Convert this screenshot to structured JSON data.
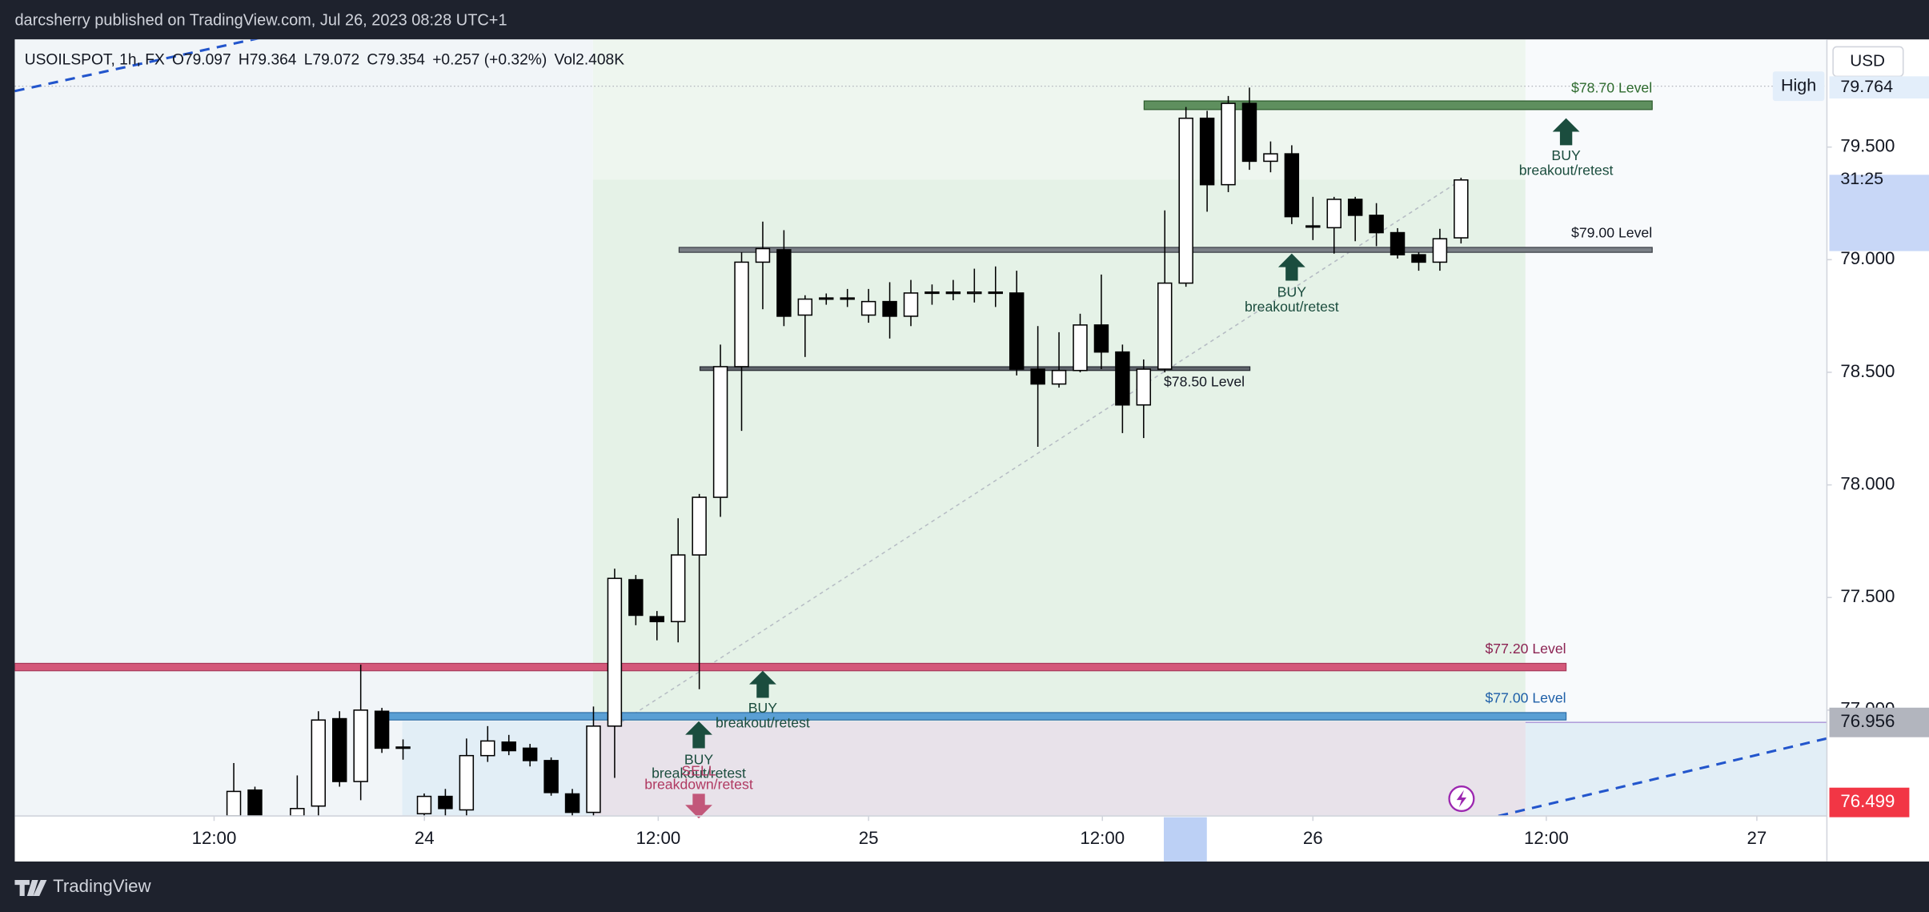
{
  "header": {
    "publisher": "darcsherry published on TradingView.com, Jul 26, 2023 08:28 UTC+1"
  },
  "chart_data": {
    "type": "candlestick",
    "title": "USOILSPOT, 1h, FX",
    "legend": {
      "open": "O79.097",
      "high": "H79.364",
      "low": "L79.072",
      "close": "C79.354",
      "change": "+0.257 (+0.32%)",
      "volume": "Vol2.408K"
    },
    "currency": "USD",
    "x": [
      0,
      1,
      3,
      4,
      5,
      6,
      7,
      8,
      9,
      10,
      11,
      12,
      13,
      14,
      15,
      16,
      17,
      18,
      19,
      20,
      21,
      22,
      23,
      24,
      25,
      26,
      27,
      28,
      29,
      30,
      31,
      32,
      33,
      34,
      35,
      36,
      37,
      38,
      39,
      40,
      41,
      42,
      43,
      44,
      45,
      46,
      47,
      48,
      49,
      50,
      51,
      52,
      53,
      54,
      55,
      56,
      57,
      58
    ],
    "open": [
      76.53,
      76.645,
      76.53,
      76.574,
      76.962,
      76.683,
      76.995,
      76.831,
      76.54,
      76.617,
      76.557,
      76.798,
      76.858,
      76.831,
      76.776,
      76.628,
      76.546,
      76.929,
      77.579,
      77.415,
      77.393,
      77.689,
      77.945,
      78.525,
      78.989,
      79.044,
      78.754,
      78.825,
      78.83,
      78.754,
      78.814,
      78.749,
      78.852,
      78.856,
      78.85,
      78.856,
      78.852,
      78.514,
      78.448,
      78.508,
      78.71,
      78.59,
      78.355,
      78.514,
      78.896,
      79.628,
      79.333,
      79.694,
      79.437,
      79.47,
      79.148,
      79.142,
      79.268,
      79.197,
      79.12,
      79.022,
      78.989,
      79.097
    ],
    "high": [
      76.765,
      76.66,
      76.71,
      76.995,
      76.995,
      77.202,
      77.01,
      76.87,
      76.63,
      76.65,
      76.874,
      76.929,
      76.89,
      76.85,
      76.79,
      76.65,
      77.016,
      77.628,
      77.6,
      77.44,
      77.852,
      77.96,
      78.623,
      79.033,
      79.169,
      79.131,
      78.842,
      78.85,
      78.87,
      78.87,
      78.9,
      78.91,
      78.89,
      78.91,
      78.96,
      78.97,
      78.951,
      78.705,
      78.678,
      78.76,
      78.934,
      78.623,
      78.557,
      79.219,
      79.678,
      79.661,
      79.727,
      79.764,
      79.525,
      79.508,
      79.279,
      79.279,
      79.279,
      79.251,
      79.14,
      79.033,
      79.137,
      79.364
    ],
    "low": [
      76.5,
      76.5,
      76.5,
      76.53,
      76.66,
      76.6,
      76.81,
      76.78,
      76.5,
      76.53,
      76.53,
      76.77,
      76.8,
      76.75,
      76.62,
      76.52,
      76.53,
      76.699,
      77.377,
      77.31,
      77.301,
      77.093,
      77.858,
      78.24,
      78.78,
      78.705,
      78.568,
      78.8,
      78.79,
      78.72,
      78.65,
      78.705,
      78.8,
      78.82,
      78.81,
      78.79,
      78.486,
      78.169,
      78.432,
      78.5,
      78.514,
      78.23,
      78.208,
      78.5,
      78.88,
      79.213,
      79.3,
      79.399,
      79.388,
      79.158,
      79.087,
      79.027,
      79.082,
      79.06,
      79.005,
      78.951,
      78.951,
      79.072
    ],
    "close": [
      76.639,
      76.53,
      76.563,
      76.956,
      76.683,
      77.0,
      76.831,
      76.836,
      76.617,
      76.563,
      76.798,
      76.863,
      76.82,
      76.776,
      76.634,
      76.546,
      76.929,
      77.585,
      77.421,
      77.393,
      77.689,
      77.945,
      78.525,
      78.989,
      79.049,
      78.749,
      78.825,
      78.83,
      78.825,
      78.814,
      78.749,
      78.852,
      78.856,
      78.85,
      78.856,
      78.852,
      78.514,
      78.448,
      78.508,
      78.71,
      78.59,
      78.355,
      78.514,
      78.896,
      79.628,
      79.333,
      79.694,
      79.437,
      79.47,
      79.191,
      79.15,
      79.268,
      79.197,
      79.12,
      79.022,
      78.989,
      79.093,
      79.354
    ],
    "up_color": "#ffffff",
    "down_color": "#000000",
    "xlim": [
      -10.35,
      75.29
    ],
    "xticks": [
      {
        "value": -0.93,
        "label": "12:00"
      },
      {
        "value": 9.01,
        "label": "24"
      },
      {
        "value": 20.06,
        "label": "12:00"
      },
      {
        "value": 30.0,
        "label": "25"
      },
      {
        "value": 41.05,
        "label": "12:00"
      },
      {
        "value": 51.0,
        "label": "26"
      },
      {
        "value": 62.03,
        "label": "12:00"
      },
      {
        "value": 71.98,
        "label": "27"
      }
    ],
    "ylim": [
      76.53,
      79.978
    ],
    "yticks": [
      {
        "value": 77,
        "label": "77.000"
      },
      {
        "value": 77.5,
        "label": "77.500"
      },
      {
        "value": 78,
        "label": "78.000"
      },
      {
        "value": 78.5,
        "label": "78.500"
      },
      {
        "value": 79,
        "label": "79.000"
      },
      {
        "value": 79.5,
        "label": "79.500"
      }
    ],
    "grid": false,
    "price_labels": {
      "high_badge": "High",
      "high": "79.764",
      "countdown": "31:25",
      "crosshair": "76.956",
      "last": "76.499"
    },
    "levels": [
      "$78.70 Level",
      "$79.00 Level",
      "$78.50 Level",
      "$77.20 Level",
      "$77.00 Level"
    ],
    "signals": [
      {
        "action": "BUY",
        "label": "breakout/retest"
      },
      {
        "action": "BUY",
        "label": "breakout/retest"
      },
      {
        "action": "BUY",
        "label": "breakout/retest"
      },
      {
        "action": "BUY",
        "label": "breakout/retest"
      },
      {
        "action": "SELL",
        "label": "breakdown/retest"
      }
    ]
  },
  "footer": {
    "brand": "TradingView"
  }
}
